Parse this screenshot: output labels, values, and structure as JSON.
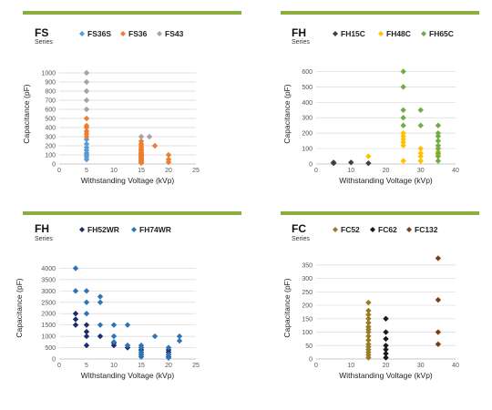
{
  "header_bar_color": "#8BAE3C",
  "chart_data": [
    {
      "type": "scatter",
      "series_name": "FS",
      "series_sub": "Series",
      "xlabel": "Withstanding Voltage (kVp)",
      "ylabel": "Capacitance (pF)",
      "xlim": [
        0,
        25
      ],
      "ylim": [
        0,
        1100
      ],
      "xticks": [
        0,
        5,
        10,
        15,
        20,
        25
      ],
      "yticks": [
        0,
        100,
        200,
        300,
        400,
        500,
        600,
        700,
        800,
        900,
        1000
      ],
      "grid": "horizontal",
      "legend_position": "top",
      "series": [
        {
          "name": "FS36S",
          "color": "#5B9BD5",
          "points": [
            [
              5,
              50
            ],
            [
              5,
              80
            ],
            [
              5,
              100
            ],
            [
              5,
              120
            ],
            [
              5,
              150
            ],
            [
              5,
              180
            ],
            [
              5,
              220
            ],
            [
              5,
              270
            ]
          ]
        },
        {
          "name": "FS36",
          "color": "#ED7D31",
          "points": [
            [
              5,
              300
            ],
            [
              5,
              330
            ],
            [
              5,
              360
            ],
            [
              5,
              400
            ],
            [
              5,
              420
            ],
            [
              5,
              500
            ],
            [
              15,
              10
            ],
            [
              15,
              20
            ],
            [
              15,
              30
            ],
            [
              15,
              40
            ],
            [
              15,
              50
            ],
            [
              15,
              60
            ],
            [
              15,
              70
            ],
            [
              15,
              80
            ],
            [
              15,
              90
            ],
            [
              15,
              100
            ],
            [
              15,
              110
            ],
            [
              15,
              120
            ],
            [
              15,
              130
            ],
            [
              15,
              150
            ],
            [
              15,
              160
            ],
            [
              15,
              180
            ],
            [
              15,
              200
            ],
            [
              15,
              220
            ],
            [
              15,
              250
            ],
            [
              17.5,
              200
            ],
            [
              20,
              100
            ],
            [
              20,
              50
            ],
            [
              20,
              20
            ]
          ]
        },
        {
          "name": "FS43",
          "color": "#A5A5A5",
          "points": [
            [
              5,
              600
            ],
            [
              5,
              700
            ],
            [
              5,
              800
            ],
            [
              5,
              900
            ],
            [
              5,
              1000
            ],
            [
              15,
              300
            ],
            [
              16.5,
              300
            ]
          ]
        }
      ]
    },
    {
      "type": "scatter",
      "series_name": "FH",
      "series_sub": "Series",
      "xlabel": "Withstanding Voltage (kVp)",
      "ylabel": "Capacitance (pF)",
      "xlim": [
        0,
        40
      ],
      "ylim": [
        0,
        650
      ],
      "xticks": [
        0,
        10,
        20,
        30,
        40
      ],
      "yticks": [
        0,
        100,
        200,
        300,
        400,
        500,
        600
      ],
      "grid": "horizontal",
      "legend_position": "top",
      "series": [
        {
          "name": "FH15C",
          "color": "#404040",
          "points": [
            [
              5,
              5
            ],
            [
              5,
              10
            ],
            [
              10,
              10
            ],
            [
              15,
              5
            ]
          ]
        },
        {
          "name": "FH48C",
          "color": "#FFC000",
          "points": [
            [
              15,
              50
            ],
            [
              25,
              20
            ],
            [
              25,
              120
            ],
            [
              25,
              140
            ],
            [
              25,
              160
            ],
            [
              25,
              180
            ],
            [
              25,
              200
            ],
            [
              30,
              20
            ],
            [
              30,
              50
            ],
            [
              30,
              70
            ],
            [
              30,
              100
            ],
            [
              35,
              60
            ],
            [
              35,
              80
            ],
            [
              35,
              100
            ]
          ]
        },
        {
          "name": "FH65C",
          "color": "#70AD47",
          "points": [
            [
              25,
              250
            ],
            [
              25,
              300
            ],
            [
              25,
              350
            ],
            [
              25,
              500
            ],
            [
              25,
              600
            ],
            [
              30,
              250
            ],
            [
              30,
              350
            ],
            [
              35,
              20
            ],
            [
              35,
              50
            ],
            [
              35,
              70
            ],
            [
              35,
              100
            ],
            [
              35,
              120
            ],
            [
              35,
              150
            ],
            [
              35,
              180
            ],
            [
              35,
              200
            ],
            [
              35,
              250
            ]
          ]
        }
      ]
    },
    {
      "type": "scatter",
      "series_name": "FH",
      "series_sub": "Series",
      "xlabel": "Withstanding Voltage (kVp)",
      "ylabel": "Capacitance (pF)",
      "xlim": [
        0,
        25
      ],
      "ylim": [
        0,
        4500
      ],
      "xticks": [
        0,
        5,
        10,
        15,
        20,
        25
      ],
      "yticks": [
        0,
        500,
        1000,
        1500,
        2000,
        2500,
        3000,
        3500,
        4000
      ],
      "grid": "horizontal",
      "legend_position": "top",
      "series": [
        {
          "name": "FH52WR",
          "color": "#1F2D6B",
          "points": [
            [
              3,
              1500
            ],
            [
              3,
              1750
            ],
            [
              3,
              2000
            ],
            [
              5,
              1500
            ],
            [
              5,
              1200
            ],
            [
              5,
              1000
            ],
            [
              5,
              600
            ],
            [
              7.5,
              1000
            ],
            [
              10,
              600
            ],
            [
              10,
              700
            ],
            [
              12.5,
              500
            ],
            [
              15,
              500
            ],
            [
              15,
              400
            ],
            [
              15,
              300
            ],
            [
              15,
              200
            ],
            [
              15,
              100
            ],
            [
              20,
              100
            ],
            [
              20,
              200
            ],
            [
              20,
              300
            ],
            [
              20,
              400
            ]
          ]
        },
        {
          "name": "FH74WR",
          "color": "#2E75B6",
          "points": [
            [
              3,
              4000
            ],
            [
              3,
              3000
            ],
            [
              5,
              3000
            ],
            [
              5,
              2500
            ],
            [
              5,
              2000
            ],
            [
              7.5,
              2750
            ],
            [
              7.5,
              2500
            ],
            [
              7.5,
              1500
            ],
            [
              10,
              1500
            ],
            [
              10,
              1000
            ],
            [
              10,
              750
            ],
            [
              12.5,
              1500
            ],
            [
              12.5,
              600
            ],
            [
              15,
              600
            ],
            [
              15,
              500
            ],
            [
              15,
              300
            ],
            [
              15,
              200
            ],
            [
              15,
              100
            ],
            [
              17.5,
              1000
            ],
            [
              20,
              500
            ],
            [
              20,
              200
            ],
            [
              20,
              50
            ],
            [
              22,
              1000
            ],
            [
              22,
              800
            ]
          ]
        }
      ]
    },
    {
      "type": "scatter",
      "series_name": "FC",
      "series_sub": "Series",
      "xlabel": "Withstanding Voltage (kVp)",
      "ylabel": "Capacitance (pF)",
      "xlim": [
        0,
        40
      ],
      "ylim": [
        0,
        380
      ],
      "xticks": [
        0,
        10,
        20,
        30,
        40
      ],
      "yticks": [
        0,
        50,
        100,
        150,
        200,
        250,
        300,
        350
      ],
      "grid": "horizontal",
      "legend_position": "top",
      "series": [
        {
          "name": "FC52",
          "color": "#9C7A21",
          "points": [
            [
              15,
              5
            ],
            [
              15,
              15
            ],
            [
              15,
              25
            ],
            [
              15,
              35
            ],
            [
              15,
              45
            ],
            [
              15,
              55
            ],
            [
              15,
              70
            ],
            [
              15,
              85
            ],
            [
              15,
              100
            ],
            [
              15,
              110
            ],
            [
              15,
              120
            ],
            [
              15,
              135
            ],
            [
              15,
              150
            ],
            [
              15,
              165
            ],
            [
              15,
              180
            ],
            [
              15,
              210
            ]
          ]
        },
        {
          "name": "FC62",
          "color": "#1A1A1A",
          "points": [
            [
              20,
              5
            ],
            [
              20,
              20
            ],
            [
              20,
              35
            ],
            [
              20,
              50
            ],
            [
              20,
              75
            ],
            [
              20,
              100
            ],
            [
              20,
              150
            ]
          ]
        },
        {
          "name": "FC132",
          "color": "#843C0C",
          "points": [
            [
              35,
              55
            ],
            [
              35,
              100
            ],
            [
              35,
              220
            ],
            [
              35,
              375
            ]
          ]
        }
      ]
    }
  ]
}
